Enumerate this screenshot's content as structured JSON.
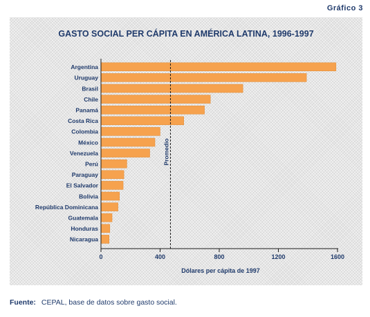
{
  "figure_label": "Gráfico 3",
  "source": {
    "label": "Fuente:",
    "text": "CEPAL, base de datos sobre gasto social."
  },
  "colors": {
    "bar": "#f6a24e",
    "bar_stroke": "#e08a34",
    "title": "#1f3a6b",
    "text": "#1f3a6b",
    "axis": "#1a1a1a"
  },
  "chart_data": {
    "type": "bar",
    "orientation": "horizontal",
    "title": "GASTO SOCIAL PER CÁPITA EN AMÉRICA LATINA, 1996-1997",
    "xlabel": "Dólares per cápita de 1997",
    "ylabel": "",
    "categories": [
      "Argentina",
      "Uruguay",
      "Brasil",
      "Chile",
      "Panamá",
      "Costa Rica",
      "Colombia",
      "México",
      "Venezuela",
      "Perú",
      "Paraguay",
      "El Salvador",
      "Bolivia",
      "República Dominicana",
      "Guatemala",
      "Honduras",
      "Nicaragua"
    ],
    "values": [
      1590,
      1390,
      960,
      740,
      700,
      560,
      400,
      365,
      330,
      175,
      155,
      150,
      125,
      115,
      75,
      60,
      55
    ],
    "xlim": [
      0,
      1600
    ],
    "xticks": [
      0,
      400,
      800,
      1200,
      1600
    ],
    "grid": false,
    "reference_line": {
      "label": "Promedio",
      "value": 470
    }
  }
}
